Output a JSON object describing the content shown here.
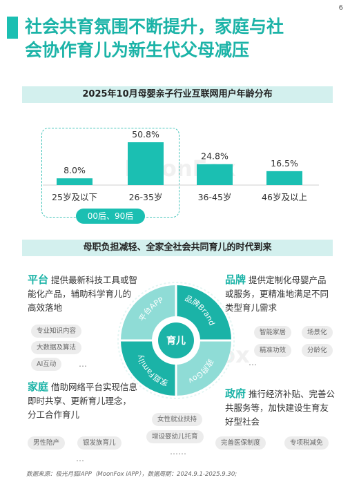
{
  "page_number": "6",
  "title_line1": "社会共育氛围不断提升，家庭与社",
  "title_line2": "会协作育儿为新生代父母减压",
  "chart_data": {
    "type": "bar",
    "title": "2025年10月母婴亲子行业互联网用户年龄分布",
    "categories": [
      "25岁及以下",
      "26-35岁",
      "36-45岁",
      "46岁及以上"
    ],
    "values": [
      8.0,
      50.8,
      24.8,
      16.5
    ],
    "value_labels": [
      "8.0%",
      "50.8%",
      "24.8%",
      "16.5%"
    ],
    "unit": "%",
    "bar_color": "#1bbfb2",
    "group_tag": "00后、90后"
  },
  "section2_title": "母职负担减轻、全家全社会共同育儿的时代到来",
  "watermark": "MoonFox",
  "center_label": "育儿",
  "ring_labels": [
    "平台APP",
    "品牌Brand",
    "政府Gov",
    "家庭Family"
  ],
  "platform": {
    "head": "平台",
    "text": "提供最新科技工具或智能化产品，辅助科学育儿的高效落地",
    "tags": [
      "专业知识内容",
      "大数据及算法",
      "AI互动"
    ],
    "more": "…"
  },
  "brand": {
    "head": "品牌",
    "text": "提供定制化母婴产品或服务，更精准地满足不同类型育儿需求",
    "tags": [
      "智能家居",
      "场景化",
      "精准功效",
      "分龄化"
    ],
    "more": "…"
  },
  "family": {
    "head": "家庭",
    "text": "借助网络平台实现信息即时共享、更新育儿理念，分工合作育儿",
    "tags": [
      "男性陪产",
      "银发族育儿"
    ],
    "more": "…"
  },
  "government": {
    "head": "政府",
    "text": "推行经济补贴、完善公共服务等，加快建设生育友好型社会",
    "tags": [
      "女性就业扶持",
      "增设婴幼儿托育",
      "完善医保制度",
      "专项税减免"
    ],
    "more": "……"
  },
  "colors": {
    "accent": "#1bbfb2",
    "band": "#d3f0ee",
    "ring_light": "#8fdcd6",
    "ring_dark": "#1bb3a7"
  },
  "source": "数据来源：极光月狐iAPP（MoonFox iAPP），数据周期：2024.9.1-2025.9.30;"
}
